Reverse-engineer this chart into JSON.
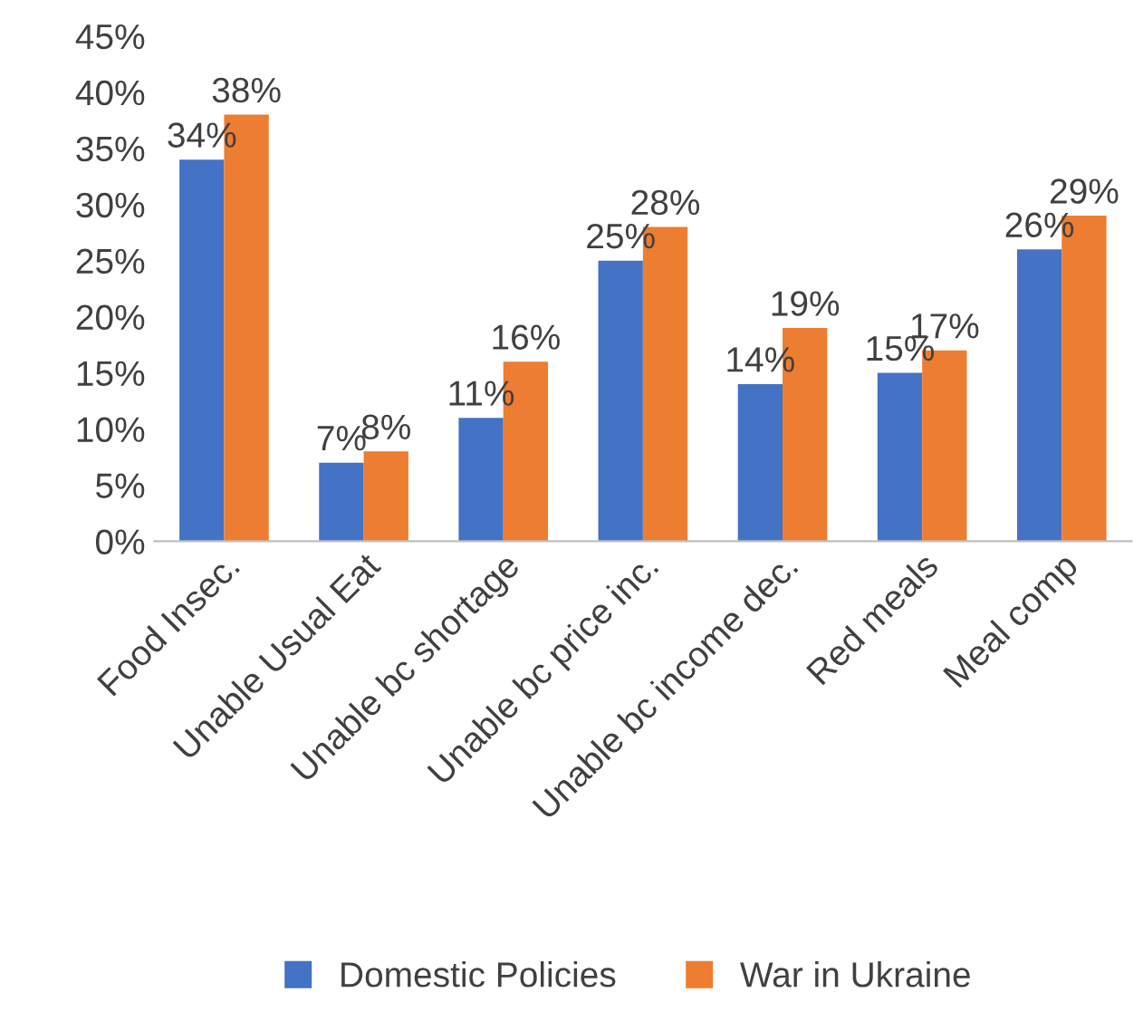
{
  "chart_data": {
    "type": "bar",
    "categories": [
      "Food Insec.",
      "Unable Usual Eat",
      "Unable bc shortage",
      "Unable bc price inc.",
      "Unable bc income dec.",
      "Red meals",
      "Meal comp"
    ],
    "series": [
      {
        "name": "Domestic Policies",
        "color": "#4472c4",
        "values": [
          34,
          7,
          11,
          25,
          14,
          15,
          26
        ],
        "value_labels": [
          "34%",
          "7%",
          "11%",
          "25%",
          "14%",
          "15%",
          "26%"
        ]
      },
      {
        "name": "War in Ukraine",
        "color": "#ed7d31",
        "values": [
          38,
          8,
          16,
          28,
          19,
          17,
          29
        ],
        "value_labels": [
          "38%",
          "8%",
          "16%",
          "28%",
          "19%",
          "17%",
          "29%"
        ]
      }
    ],
    "ylim": [
      0,
      45
    ],
    "yticks": [
      {
        "value": 0,
        "label": "0%"
      },
      {
        "value": 5,
        "label": "5%"
      },
      {
        "value": 10,
        "label": "10%"
      },
      {
        "value": 15,
        "label": "15%"
      },
      {
        "value": 20,
        "label": "20%"
      },
      {
        "value": 25,
        "label": "25%"
      },
      {
        "value": 30,
        "label": "30%"
      },
      {
        "value": 35,
        "label": "35%"
      },
      {
        "value": 40,
        "label": "40%"
      },
      {
        "value": 45,
        "label": "45%"
      }
    ],
    "grid": false,
    "legend": "bottom"
  }
}
